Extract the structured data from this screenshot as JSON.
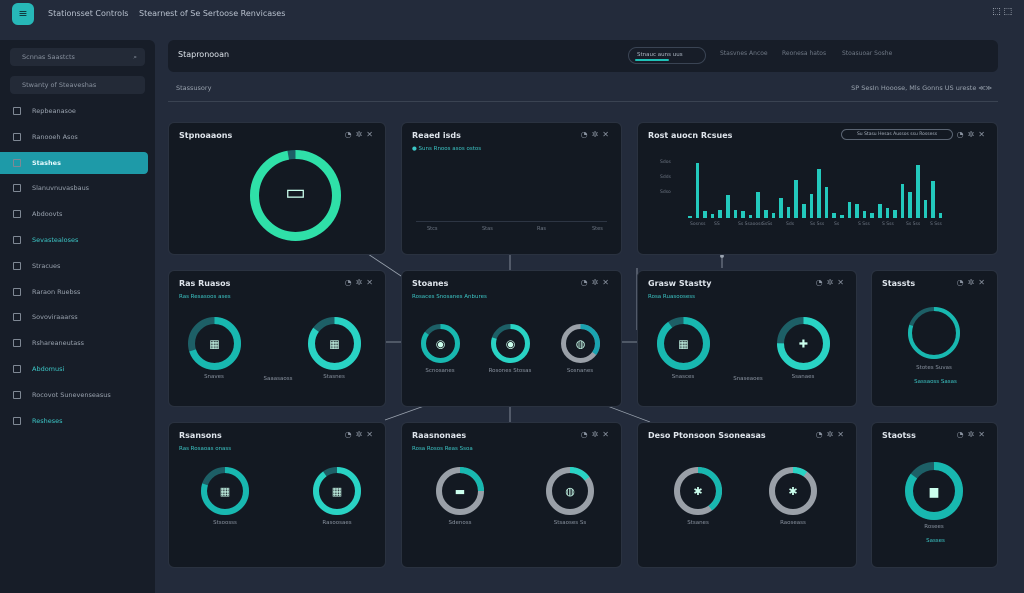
{
  "app": {
    "logo": "≡",
    "title": "Stationsset Controls",
    "subtitle": "Stearnest of Se Sertoose Renvicases"
  },
  "topbar": {
    "icons": "⬚ ⬚"
  },
  "sidebar": {
    "search": "Scnnas Saastcts",
    "filter": "Stwanty of Steaveshas",
    "items": [
      {
        "label": "Repbeanasoe"
      },
      {
        "label": "Ranooeh Asos"
      },
      {
        "label": "Stashes",
        "active": true
      },
      {
        "label": "Slanuvnuvasbaus"
      },
      {
        "label": "Abdoovts"
      },
      {
        "label": "Sevastealoses",
        "teal": true
      },
      {
        "label": "Stracues"
      },
      {
        "label": "Raraon Ruebss"
      },
      {
        "label": "Sovoviraaarss"
      },
      {
        "label": "Rshareaneutass"
      },
      {
        "label": "Abdomusi",
        "teal": true
      },
      {
        "label": "Rocovot Sunevenseasus"
      },
      {
        "label": "Resheses",
        "teal": true
      }
    ]
  },
  "header": {
    "title": "Stapronooan",
    "search": "Stnauc auns uus",
    "tabs": [
      "Stasvnes Ancoe",
      "Reonesa hatos",
      "Stoasuoar Soshe"
    ]
  },
  "subrow": {
    "left": "Stassusory",
    "right": "SP SesIn Hooose, Mls Gonns US ureste ≪≫"
  },
  "accent": "#1fc2b8",
  "cards": [
    {
      "id": "a",
      "title": "Stpnoaaons",
      "sub": "",
      "donuts": [
        {
          "pct": 0.97,
          "r": 41,
          "w": 9,
          "label": "",
          "center": "▭"
        }
      ]
    },
    {
      "id": "b",
      "title": "Reaed isds",
      "sub": "● Suns Rnoos asos ostos",
      "donuts": [],
      "axis": [
        "Stcs",
        "Stas",
        "Ras",
        "Stes"
      ]
    },
    {
      "id": "c",
      "title": "Rost auocn Rcsues",
      "pill": "Su Stasu Hesas Aussos ssu Rossess",
      "donuts": []
    },
    {
      "id": "d",
      "title": "Ras Ruasos",
      "sub": "Ras Resasoos ases",
      "donuts": [
        {
          "pct": 0.7,
          "r": 23,
          "w": 7,
          "label": "Snaves",
          "center": "▦"
        },
        {
          "pct": 0.85,
          "r": 23,
          "w": 7,
          "label": "Stasnes",
          "center": "▦"
        }
      ],
      "mid": "Saaasaoss"
    },
    {
      "id": "e",
      "title": "Stoanes",
      "sub": "Rosaces Snosanes Anbures",
      "donuts": [
        {
          "pct": 0.85,
          "r": 17,
          "w": 5,
          "label": "Scnosanes",
          "center": "◉"
        },
        {
          "pct": 0.8,
          "r": 17,
          "w": 5,
          "label": "Rosones Stosas",
          "center": "◉"
        },
        {
          "pct": 0.35,
          "r": 17,
          "w": 5,
          "label": "Sosnanes",
          "center": "◍"
        }
      ]
    },
    {
      "id": "f",
      "title": "Grasw Stastty",
      "sub": "Rosa Ruasoosess",
      "donuts": [
        {
          "pct": 0.9,
          "r": 23,
          "w": 7,
          "label": "Snasces",
          "center": "▦"
        },
        {
          "pct": 0.75,
          "r": 23,
          "w": 7,
          "label": "Ssanaes",
          "center": "✚"
        }
      ],
      "mid": "Snaseaoes"
    },
    {
      "id": "g",
      "title": "Stassts",
      "sub": "",
      "donuts": [
        {
          "pct": 0.8,
          "r": 24,
          "w": 4,
          "label": "Stotes Suvas",
          "center": ""
        }
      ],
      "sub2": "Sassaoss Sasas"
    },
    {
      "id": "h",
      "title": "Rsansons",
      "sub": "Ras Rosaoas onass",
      "donuts": [
        {
          "pct": 0.8,
          "r": 21,
          "w": 6,
          "label": "Stsoosss",
          "center": "▦"
        },
        {
          "pct": 0.9,
          "r": 21,
          "w": 6,
          "label": "Rasoosaes",
          "center": "▦"
        }
      ]
    },
    {
      "id": "i",
      "title": "Raasnonaes",
      "sub": "Rosa Rosos Reas Ssoa",
      "donuts": [
        {
          "pct": 0.25,
          "r": 21,
          "w": 6,
          "label": "Sdenoss",
          "center": "▬"
        },
        {
          "pct": 0.15,
          "r": 21,
          "w": 6,
          "label": "Stsaoses Ss",
          "center": "◍"
        }
      ]
    },
    {
      "id": "j",
      "title": "Deso Ptonsoon Ssoneasas",
      "sub": "",
      "donuts": [
        {
          "pct": 0.4,
          "r": 21,
          "w": 6,
          "label": "Stsanes",
          "center": "✱"
        },
        {
          "pct": 0.1,
          "r": 21,
          "w": 6,
          "label": "Raoseass",
          "center": "✱"
        }
      ]
    },
    {
      "id": "k",
      "title": "Staotss",
      "sub": "",
      "donuts": [
        {
          "pct": 0.85,
          "r": 25,
          "w": 8,
          "label": "Rosees",
          "center": "▆"
        }
      ],
      "sub2": "Sasses"
    }
  ],
  "chart_data": {
    "type": "bar",
    "title": "Rost auocn Rcsues",
    "yticks": [
      "Sdos",
      "Sdds",
      "Sdso",
      ""
    ],
    "xticks": [
      "Sosnss",
      "SS",
      "Ss Ssaooss",
      "SsSs",
      "Sds",
      "Ss Sss",
      "Ss",
      "S Sss",
      "S Sss",
      "Ss Sss",
      "S Sss"
    ],
    "values": [
      4,
      100,
      12,
      8,
      14,
      42,
      14,
      12,
      6,
      48,
      14,
      10,
      36,
      20,
      70,
      26,
      44,
      90,
      56,
      10,
      6,
      30,
      26,
      12,
      10,
      26,
      18,
      14,
      62,
      48,
      96,
      32,
      68,
      10,
      0,
      0
    ]
  }
}
